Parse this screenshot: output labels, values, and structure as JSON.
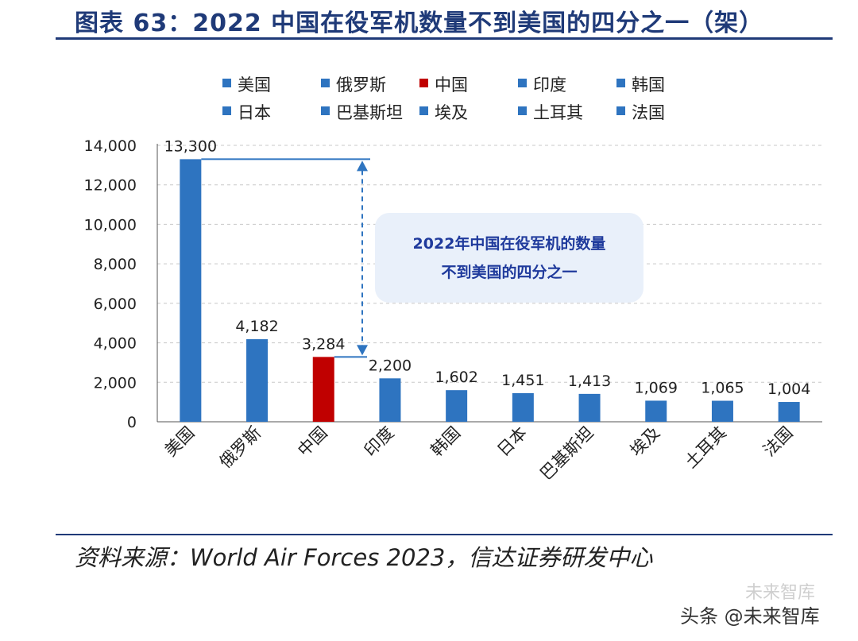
{
  "header": {
    "title": "图表 63：2022 中国在役军机数量不到美国的四分之一（架）"
  },
  "chart_data": {
    "type": "bar",
    "categories": [
      "美国",
      "俄罗斯",
      "中国",
      "印度",
      "韩国",
      "日本",
      "巴基斯坦",
      "埃及",
      "土耳其",
      "法国"
    ],
    "values": [
      13300,
      4182,
      3284,
      2200,
      1602,
      1451,
      1413,
      1069,
      1065,
      1004
    ],
    "value_labels": [
      "13,300",
      "4,182",
      "3,284",
      "2,200",
      "1,602",
      "1,451",
      "1,413",
      "1,069",
      "1,065",
      "1,004"
    ],
    "ylim": [
      0,
      14000
    ],
    "yticks": [
      0,
      2000,
      4000,
      6000,
      8000,
      10000,
      12000,
      14000
    ],
    "ytick_labels": [
      "0",
      "2,000",
      "4,000",
      "6,000",
      "8,000",
      "10,000",
      "12,000",
      "14,000"
    ],
    "grid": true,
    "legend_position": "top",
    "highlight_category": "中国",
    "annotation": {
      "lines": [
        "2022年中国在役军机的数量",
        "不到美国的四分之一"
      ]
    }
  },
  "colors": {
    "bar": "#2e74c0",
    "highlight": "#c00000",
    "title": "#1f3a78",
    "annotation_text": "#1f3a9c",
    "annotation_bg": "#e9f0fa"
  },
  "footer": {
    "source": "资料来源：World Air Forces 2023，信达证券研发中心"
  },
  "watermark": {
    "text": "头条 @未来智库",
    "ghost_text": "未来智库"
  }
}
